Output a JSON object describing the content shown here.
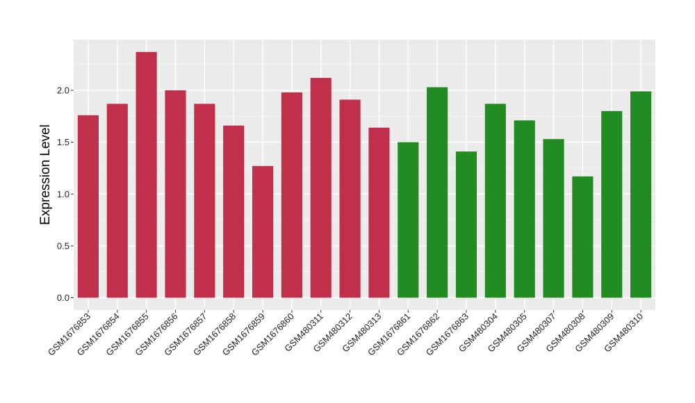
{
  "chart_data": {
    "type": "bar",
    "ylabel": "Expression Level",
    "xlabel": "",
    "ylim": [
      -0.1,
      2.5
    ],
    "yticks": [
      "0.0",
      "0.5",
      "1.0",
      "1.5",
      "2.0"
    ],
    "grid": true,
    "panel_color": "#ebebeb",
    "colors": {
      "group_a": "#c0304a",
      "group_b": "#228b22"
    },
    "categories": [
      "GSM1676853",
      "GSM1676854",
      "GSM1676855",
      "GSM1676856",
      "GSM1676857",
      "GSM1676858",
      "GSM1676859",
      "GSM1676860",
      "GSM480311",
      "GSM480312",
      "GSM480313",
      "GSM1676861",
      "GSM1676862",
      "GSM1676863",
      "GSM480304",
      "GSM480305",
      "GSM480307",
      "GSM480308",
      "GSM480309",
      "GSM480310"
    ],
    "values": [
      1.76,
      1.87,
      2.37,
      2.0,
      1.87,
      1.66,
      1.27,
      1.98,
      2.12,
      1.91,
      1.64,
      1.5,
      2.03,
      1.41,
      1.87,
      1.71,
      1.53,
      1.17,
      1.8,
      1.99
    ],
    "groups": [
      "a",
      "a",
      "a",
      "a",
      "a",
      "a",
      "a",
      "a",
      "a",
      "a",
      "a",
      "b",
      "b",
      "b",
      "b",
      "b",
      "b",
      "b",
      "b",
      "b"
    ]
  }
}
